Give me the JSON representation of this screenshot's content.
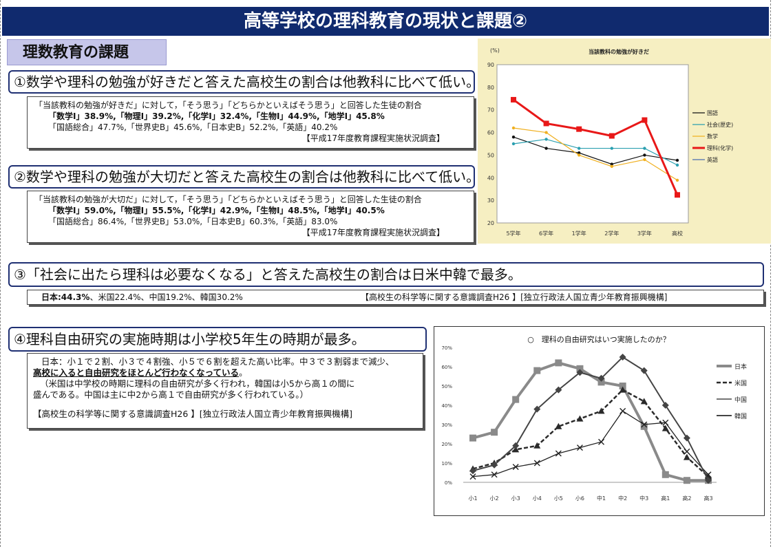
{
  "title": "高等学校の理科教育の現状と課題②",
  "section_label": "理数教育の課題",
  "q1": {
    "heading": "①数学や理科の勉強が好きだと答えた高校生の割合は他教科に比べて低い。",
    "intro": "「当該教科の勉強が好きだ」に対して，「そう思う」「どちらかといえばそう思う」と回答した生徒の割合",
    "bold_line": "「数学Ⅰ」38.9%,「物理Ⅰ」39.2%,「化学Ⅰ」32.4%,「生物Ⅰ」44.9%,「地学Ⅰ」45.8%",
    "other_line": "「国語総合」47.7%,「世界史B」45.6%,「日本史B」52.2%,「英語」40.2%",
    "source": "【平成17年度教育課程実施状況調査】"
  },
  "q2": {
    "heading": "②数学や理科の勉強が大切だと答えた高校生の割合は他教科に比べて低い。",
    "intro": "「当該教科の勉強が大切だ」に対して，「そう思う」「どちらかといえばそう思う」と回答した生徒の割合",
    "bold_line": "「数学Ⅰ」59.0%,「物理Ⅰ」55.5%,「化学Ⅰ」42.9%,「生物Ⅰ」48.5%,「地学Ⅰ」40.5%",
    "other_line": "「国語総合」86.4%,「世界史B」53.0%,「日本史B」60.3%,「英語」83.0%",
    "source": "【平成17年度教育課程実施状況調査】"
  },
  "q3": {
    "heading": "③「社会に出たら理科は必要なくなる」と答えた高校生の割合は日米中韓で最多。",
    "japan": "日本:44.3%",
    "others": "、米国22.4%、中国19.2%、韓国30.2%",
    "source": "【高校生の科学等に関する意識調査H26 】[独立行政法人国立青少年教育振興機構]"
  },
  "q4": {
    "heading": "④理科自由研究の実施時期は小学校5年生の時期が最多。",
    "line1": "日本：小１で２割、小３で４割強、小５で６割を超えた高い比率。中３で３割弱まで減少、",
    "line2_underlined": "高校に入ると自由研究をほとんど行わなくなっている",
    "line2_end": "。",
    "line3": "（米国は中学校の時期に理科の自由研究が多く行われ，韓国は小5から高１の間に",
    "line4": "盛んである。中国は主に中2から高１で自由研究が多く行われている。）",
    "source": "【高校生の科学等に関する意識調査H26 】[独立行政法人国立青少年教育振興機構]"
  },
  "chart_data": [
    {
      "type": "line",
      "title": "当該教科の勉強が好きだ",
      "ylabel": "(%)",
      "ylim": [
        20,
        90
      ],
      "yticks": [
        20,
        30,
        40,
        50,
        60,
        70,
        80,
        90
      ],
      "categories": [
        "5学年",
        "6学年",
        "1学年",
        "2学年",
        "3学年",
        "高校"
      ],
      "series": [
        {
          "name": "国語",
          "color": "#111111",
          "values": [
            58,
            53,
            51,
            46,
            50,
            47.7
          ]
        },
        {
          "name": "社会(歴史)",
          "color": "#2a9fb0",
          "values": [
            55,
            57,
            53,
            53,
            53,
            45.6
          ]
        },
        {
          "name": "数学",
          "color": "#f0b020",
          "values": [
            62,
            60,
            50,
            45,
            48,
            38.9
          ]
        },
        {
          "name": "理科(化学)",
          "color": "#e81818",
          "values": [
            74.5,
            64,
            61.5,
            58.5,
            65.5,
            32.4
          ]
        },
        {
          "name": "英語",
          "color": "#4a6cb0",
          "values": [
            null,
            null,
            null,
            null,
            null,
            null
          ]
        }
      ]
    },
    {
      "type": "line",
      "title": "○　理科の自由研究はいつ実施したのか？",
      "ylim": [
        0,
        70
      ],
      "yticks": [
        "0%",
        "10%",
        "20%",
        "30%",
        "40%",
        "50%",
        "60%",
        "70%"
      ],
      "categories": [
        "小1",
        "小2",
        "小3",
        "小4",
        "小5",
        "小6",
        "中1",
        "中2",
        "中3",
        "高1",
        "高2",
        "高3"
      ],
      "series": [
        {
          "name": "日本",
          "color": "#8a8a8a",
          "values": [
            23,
            26,
            43,
            58,
            62,
            59,
            52,
            50,
            29,
            4,
            1,
            1
          ]
        },
        {
          "name": "米国",
          "color": "#2a2a2a",
          "values": [
            7,
            10,
            17,
            19,
            29,
            33,
            37,
            48,
            42,
            28,
            13,
            3
          ]
        },
        {
          "name": "中国",
          "color": "#222222",
          "values": [
            3,
            4,
            8,
            10,
            15,
            18,
            21,
            37,
            30,
            31,
            16,
            4
          ]
        },
        {
          "name": "韓国",
          "color": "#444444",
          "values": [
            6,
            9,
            19,
            38,
            48,
            57,
            54,
            65,
            58,
            40,
            23,
            1
          ]
        }
      ]
    }
  ]
}
